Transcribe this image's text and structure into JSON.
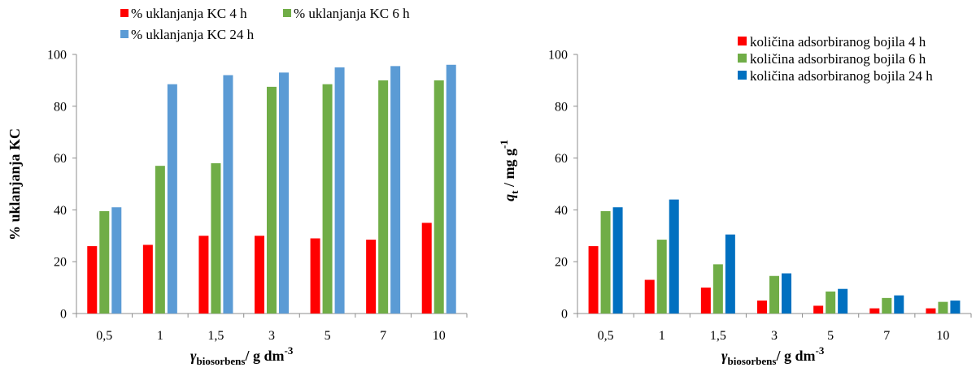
{
  "chart_data": [
    {
      "type": "bar",
      "categories": [
        "0,5",
        "1",
        "1,5",
        "3",
        "5",
        "7",
        "10"
      ],
      "series": [
        {
          "name": "% uklanjanja KC 4 h",
          "color": "#ff0000",
          "values": [
            26,
            26.5,
            30,
            30,
            29,
            28.5,
            35
          ]
        },
        {
          "name": "% uklanjanja KC 6 h",
          "color": "#70ad47",
          "values": [
            39.5,
            57,
            58,
            87.5,
            88.5,
            90,
            90
          ]
        },
        {
          "name": "% uklanjanja KC 24 h",
          "color": "#5b9bd5",
          "values": [
            41,
            88.5,
            92,
            93,
            95,
            95.5,
            96
          ]
        }
      ],
      "ylim": [
        0,
        100
      ],
      "yticks": [
        "0",
        "20",
        "40",
        "60",
        "80",
        "100"
      ],
      "ylabel": "% uklanjanja KC",
      "xlabel": {
        "symbol": "γ",
        "subscript": "biosorbens",
        "unit": "/ g dm",
        "sup": "-3"
      },
      "legend": "top",
      "grid": false
    },
    {
      "type": "bar",
      "categories": [
        "0,5",
        "1",
        "1,5",
        "3",
        "5",
        "7",
        "10"
      ],
      "series": [
        {
          "name": "količina adsorbiranog bojila 4 h",
          "color": "#ff0000",
          "values": [
            26,
            13,
            10,
            5,
            3,
            2,
            2
          ]
        },
        {
          "name": "količina adsorbiranog bojila 6 h",
          "color": "#70ad47",
          "values": [
            39.5,
            28.5,
            19,
            14.5,
            8.5,
            6,
            4.5
          ]
        },
        {
          "name": "količina adsorbiranog bojila 24 h",
          "color": "#0070c0",
          "values": [
            41,
            44,
            30.5,
            15.5,
            9.5,
            7,
            5
          ]
        }
      ],
      "ylim": [
        0,
        100
      ],
      "yticks": [
        "0",
        "20",
        "40",
        "60",
        "80",
        "100"
      ],
      "ylabel": {
        "symbol": "q",
        "subscript": "t",
        "unit": " / mg g",
        "sup": "-1"
      },
      "xlabel": {
        "symbol": "γ",
        "subscript": "biosorbens",
        "unit": "/ g dm",
        "sup": "-3"
      },
      "legend": "top-right",
      "grid": false
    }
  ]
}
